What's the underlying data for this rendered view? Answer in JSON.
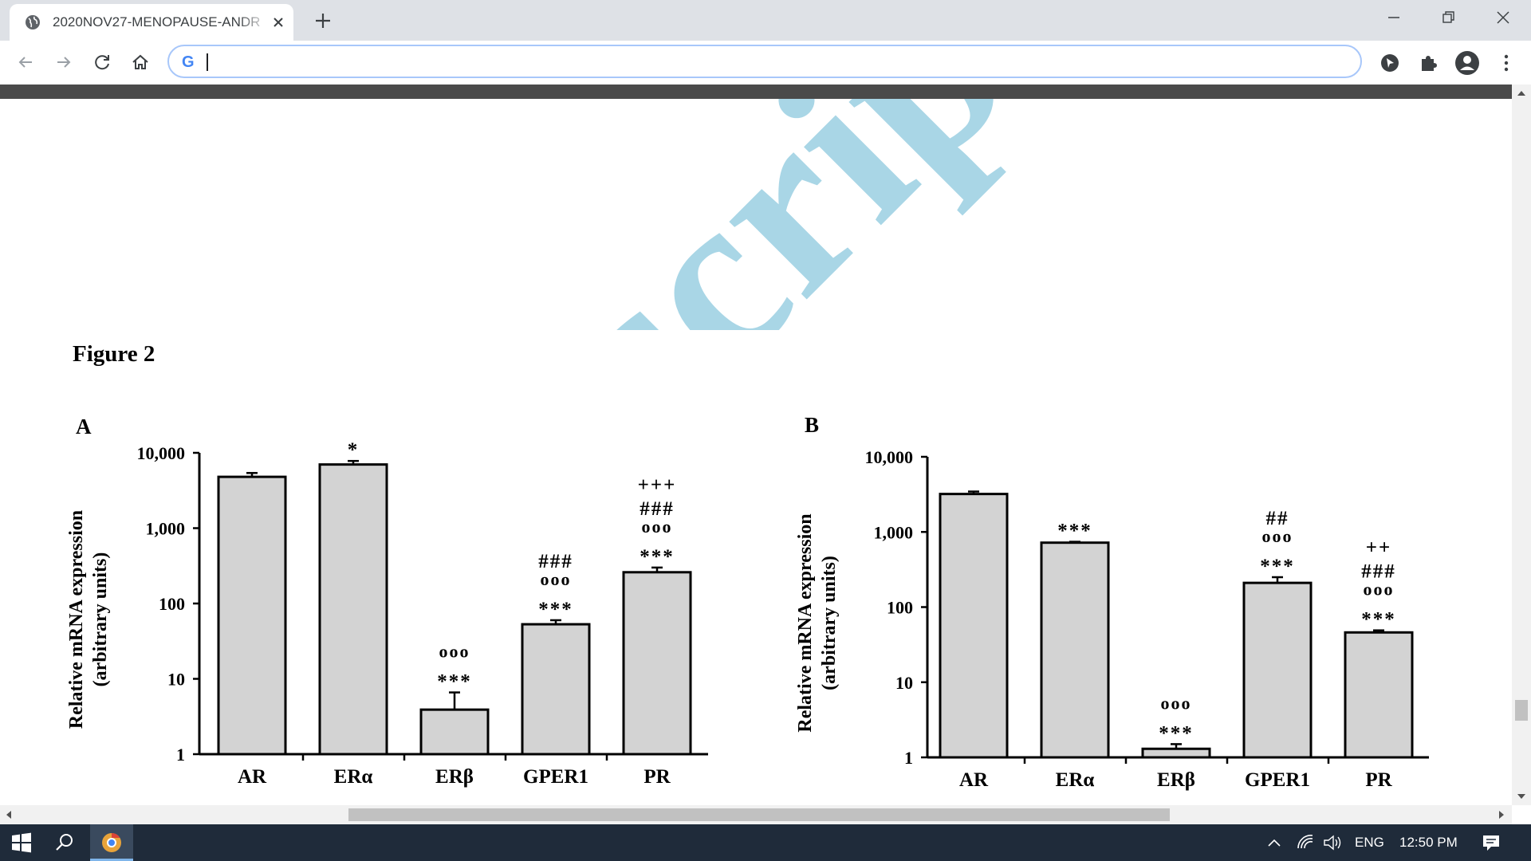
{
  "browser": {
    "tab_title": "2020NOV27-MENOPAUSE-ANDR",
    "address_value": "",
    "omnibox_logo": "G"
  },
  "watermark": {
    "text": "scrip",
    "color": "#a9d6e6"
  },
  "figure": {
    "title": "Figure 2",
    "y_label_line1": "Relative mRNA expression",
    "y_label_line2": "(arbitrary units)"
  },
  "chart_data": [
    {
      "type": "bar",
      "panel": "A",
      "scale": "log",
      "ylim": [
        1,
        10000
      ],
      "y_ticks": [
        "1",
        "10",
        "100",
        "1,000",
        "10,000"
      ],
      "categories": [
        "AR",
        "ERα",
        "ERβ",
        "GPER1",
        "PR"
      ],
      "values": [
        4800,
        7000,
        3.9,
        53,
        260
      ],
      "errors": [
        5400,
        7800,
        6.6,
        60,
        300
      ],
      "annotations": [
        [],
        [
          "*"
        ],
        [
          "ooo",
          "***"
        ],
        [
          "###",
          "ooo",
          "***"
        ],
        [
          "+++",
          "###",
          "ooo",
          "***"
        ]
      ],
      "bar_color": "#d3d3d3"
    },
    {
      "type": "bar",
      "panel": "B",
      "scale": "log",
      "ylim": [
        1,
        10000
      ],
      "y_ticks": [
        "1",
        "10",
        "100",
        "1,000",
        "10,000"
      ],
      "categories": [
        "AR",
        "ERα",
        "ERβ",
        "GPER1",
        "PR"
      ],
      "values": [
        3200,
        720,
        1.3,
        210,
        46
      ],
      "errors": [
        3450,
        740,
        1.5,
        250,
        49
      ],
      "annotations": [
        [],
        [
          "***"
        ],
        [
          "ooo",
          "***"
        ],
        [
          "##",
          "ooo",
          "***"
        ],
        [
          "++",
          "###",
          "ooo",
          "***"
        ]
      ],
      "bar_color": "#d3d3d3"
    }
  ],
  "taskbar": {
    "language": "ENG",
    "time": "12:50 PM"
  }
}
